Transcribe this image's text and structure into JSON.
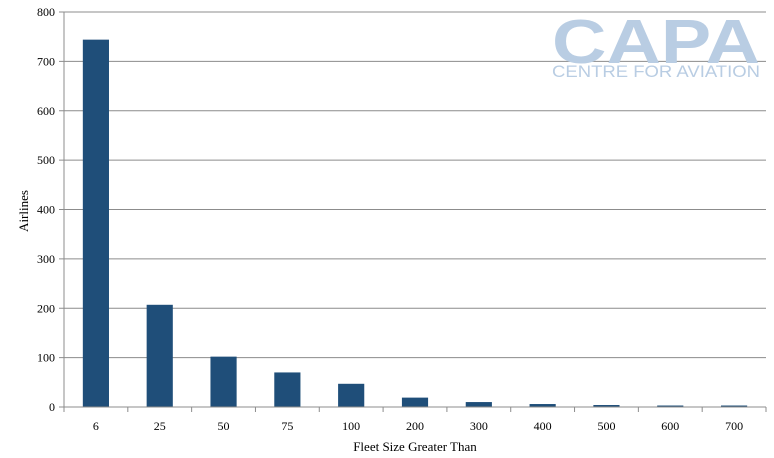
{
  "chart_data": {
    "type": "bar",
    "categories": [
      "6",
      "25",
      "50",
      "75",
      "100",
      "200",
      "300",
      "400",
      "500",
      "600",
      "700"
    ],
    "values": [
      744,
      207,
      102,
      70,
      47,
      19,
      10,
      6,
      4,
      3,
      3
    ],
    "xlabel": "Fleet Size Greater Than",
    "ylabel": "Airlines",
    "ylim": [
      0,
      800
    ],
    "yticks": [
      0,
      100,
      200,
      300,
      400,
      500,
      600,
      700,
      800
    ],
    "grid": true,
    "bar_color": "#1f4e79"
  },
  "logo": {
    "main": "CAPA",
    "sub": "CENTRE FOR AVIATION",
    "color": "#b9cde3"
  }
}
